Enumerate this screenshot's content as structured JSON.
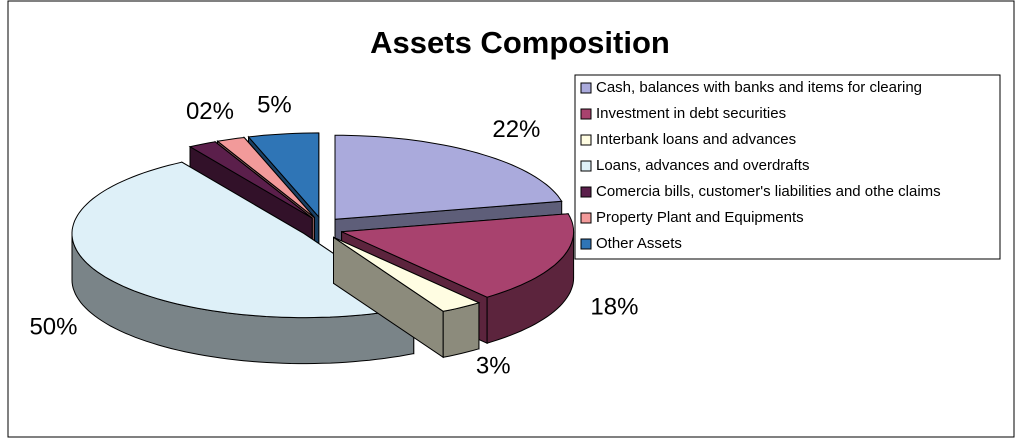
{
  "chart_data": {
    "type": "pie3d",
    "title": "Assets Composition",
    "categories": [
      "Cash, balances with banks and items for clearing",
      "Investment in debt securities",
      "Interbank loans and advances",
      "Loans, advances and overdrafts",
      "Comercia bills, customer's liabilities and othe claims",
      "Property Plant and Equipments",
      "Other Assets"
    ],
    "values": [
      22,
      18,
      3,
      50,
      2,
      2,
      5
    ],
    "value_labels": [
      "22%",
      "18%",
      "3%",
      "50%",
      null,
      "02%",
      "5%"
    ],
    "colors": [
      "#aaaadc",
      "#a8426e",
      "#fffde2",
      "#def0f8",
      "#5b1f4b",
      "#f29a9a",
      "#2f75b6"
    ],
    "legend": "right"
  }
}
